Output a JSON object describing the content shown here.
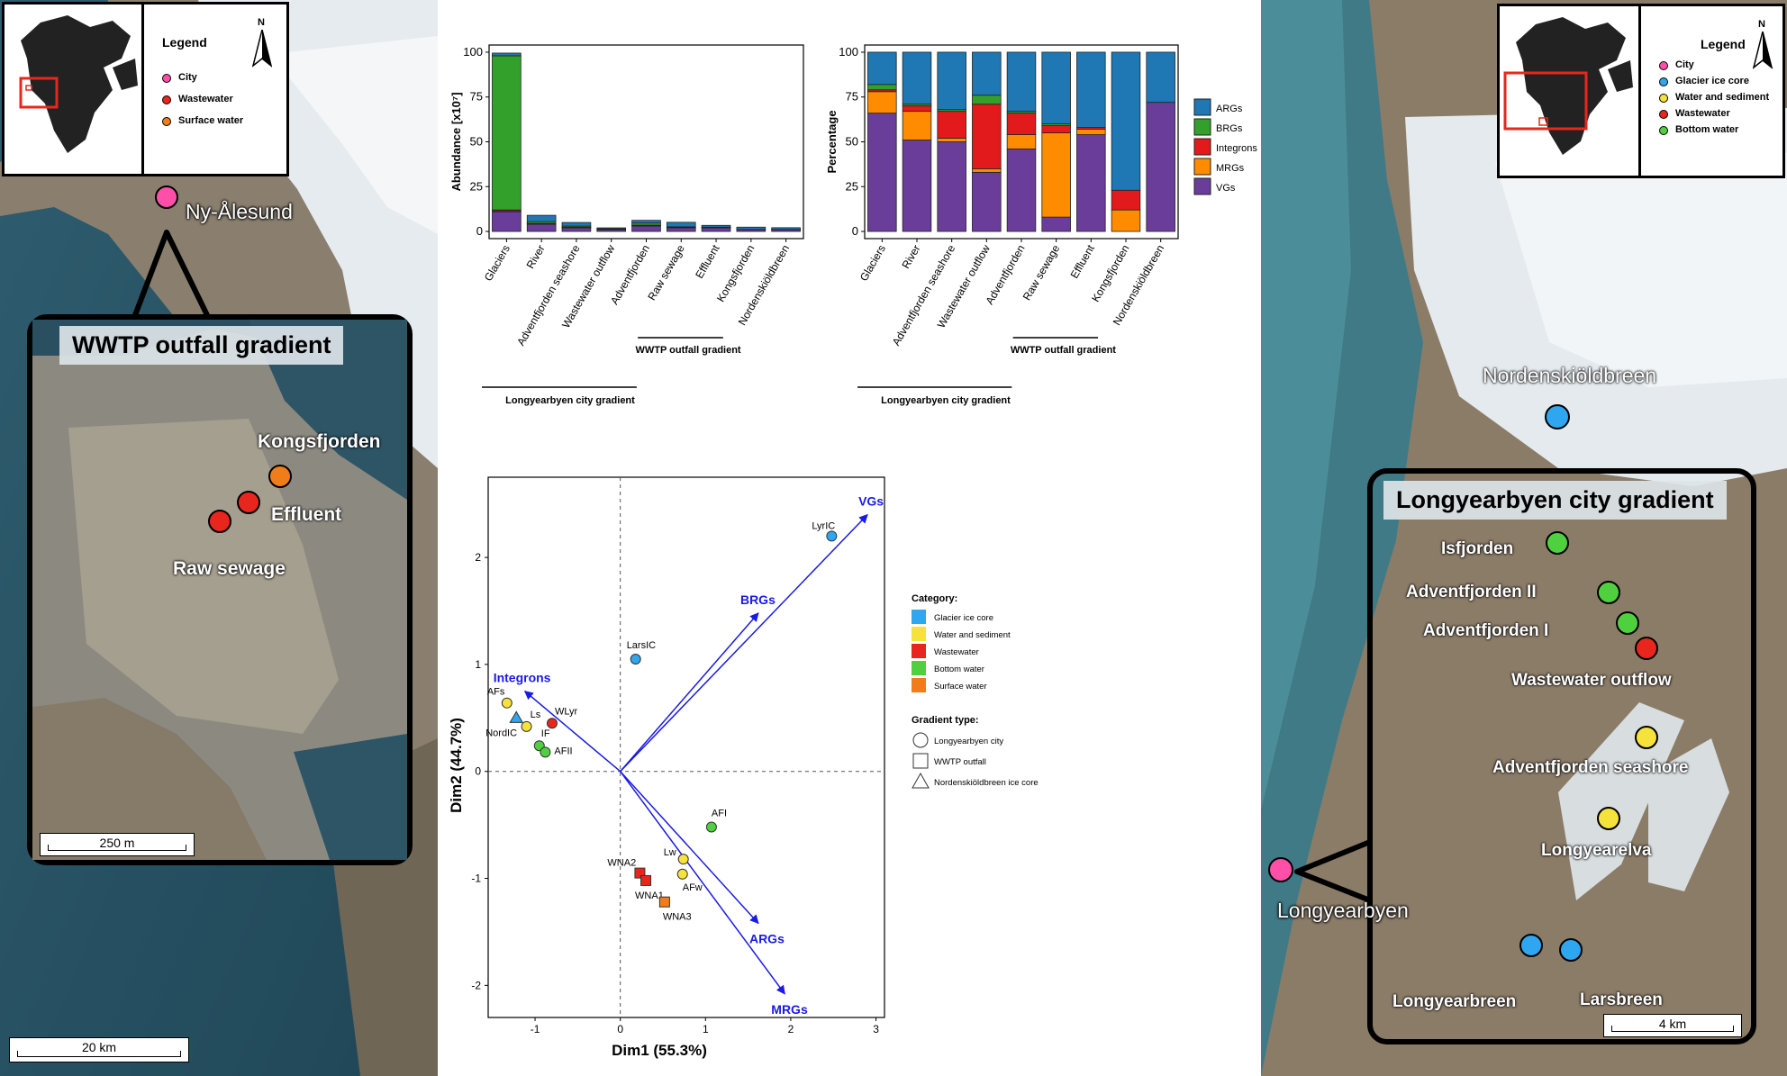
{
  "left_map": {
    "legend": {
      "title": "Legend",
      "north": "N",
      "items": [
        {
          "label": "City",
          "color": "#ff4fa8"
        },
        {
          "label": "Wastewater",
          "color": "#e8261e"
        },
        {
          "label": "Surface water",
          "color": "#f07d1a"
        }
      ]
    },
    "city": "Ny-Ålesund",
    "callout_title": "WWTP outfall gradient",
    "sites": [
      {
        "label": "Kongsfjorden",
        "color": "#f07d1a"
      },
      {
        "label": "Effluent",
        "color": "#e8261e"
      },
      {
        "label": "Raw sewage",
        "color": "#e8261e"
      }
    ],
    "scale_inner": "250 m",
    "scale_outer": "20 km"
  },
  "right_map": {
    "legend": {
      "title": "Legend",
      "north": "N",
      "items": [
        {
          "label": "City",
          "color": "#ff4fa8"
        },
        {
          "label": "Glacier ice core",
          "color": "#2ea6f0"
        },
        {
          "label": "Water and sediment",
          "color": "#f5e23a"
        },
        {
          "label": "Wastewater",
          "color": "#e8261e"
        },
        {
          "label": "Bottom water",
          "color": "#4fd13f"
        }
      ]
    },
    "glacier": "Nordenskiöldbreen",
    "callout_title": "Longyearbyen city gradient",
    "city": "Longyearbyen",
    "sites": [
      {
        "label": "Isfjorden",
        "color": "#4fd13f"
      },
      {
        "label": "Adventfjorden II",
        "color": "#4fd13f"
      },
      {
        "label": "Adventfjorden I",
        "color": "#4fd13f"
      },
      {
        "label": "Wastewater outflow",
        "color": "#e8261e"
      },
      {
        "label": "Adventfjorden seashore",
        "color": "#f5e23a"
      },
      {
        "label": "Longyearelva",
        "color": "#f5e23a"
      },
      {
        "label": "Longyearbreen",
        "color": "#2ea6f0"
      },
      {
        "label": "Larsbreen",
        "color": "#2ea6f0"
      }
    ],
    "scale": "4 km"
  },
  "chart_data": [
    {
      "type": "bar",
      "stacked": true,
      "ylabel": "Abundance [x10⁷]",
      "ylim": [
        0,
        100
      ],
      "yticks": [
        0,
        25,
        50,
        75,
        100
      ],
      "categories": [
        "Glaciers",
        "River",
        "Adventfjorden seashore",
        "Wastewater outflow",
        "Adventfjorden",
        "Raw sewage",
        "Effluent",
        "Kongsfjorden",
        "Nordenskiöldbreen"
      ],
      "series": [
        {
          "name": "VGs",
          "color": "#6a3d9a",
          "values": [
            11,
            4,
            2,
            1,
            3,
            2,
            2,
            1,
            1
          ]
        },
        {
          "name": "MRGs",
          "color": "#ff8c00",
          "values": [
            0.5,
            0.3,
            0.2,
            0.1,
            0.3,
            0.3,
            0.1,
            0.1,
            0.1
          ]
        },
        {
          "name": "Integrons",
          "color": "#e31a1c",
          "values": [
            0.5,
            0.2,
            0.2,
            0.2,
            0.2,
            0.1,
            0.1,
            0,
            0
          ]
        },
        {
          "name": "BRGs",
          "color": "#33a02c",
          "values": [
            86,
            1,
            0.6,
            0.2,
            1.2,
            0.2,
            0.2,
            0,
            0
          ]
        },
        {
          "name": "ARGs",
          "color": "#1f78b4",
          "values": [
            1.5,
            3.5,
            2,
            0.5,
            1.5,
            2.5,
            1,
            1.3,
            1
          ]
        }
      ],
      "gradients": [
        "Longyearbyen city gradient",
        "WWTP outfall gradient"
      ]
    },
    {
      "type": "bar",
      "stacked": true,
      "ylabel": "Percentage",
      "ylim": [
        0,
        100
      ],
      "yticks": [
        0,
        25,
        50,
        75,
        100
      ],
      "categories": [
        "Glaciers",
        "River",
        "Adventfjorden seashore",
        "Wastewater outflow",
        "Adventfjorden",
        "Raw sewage",
        "Effluent",
        "Kongsfjorden",
        "Nordenskiöldbreen"
      ],
      "series": [
        {
          "name": "VGs",
          "color": "#6a3d9a",
          "values": [
            66,
            51,
            50,
            33,
            46,
            8,
            54,
            0,
            72
          ]
        },
        {
          "name": "MRGs",
          "color": "#ff8c00",
          "values": [
            12,
            16,
            2,
            2,
            8,
            47,
            3,
            12,
            0
          ]
        },
        {
          "name": "Integrons",
          "color": "#e31a1c",
          "values": [
            1,
            3,
            15,
            36,
            12,
            4,
            1,
            11,
            0
          ]
        },
        {
          "name": "BRGs",
          "color": "#33a02c",
          "values": [
            3,
            1,
            1,
            5,
            1,
            1,
            0,
            0,
            0
          ]
        },
        {
          "name": "ARGs",
          "color": "#1f78b4",
          "values": [
            18,
            29,
            32,
            24,
            33,
            40,
            42,
            77,
            28
          ]
        }
      ],
      "legend": [
        "ARGs",
        "BRGs",
        "Integrons",
        "MRGs",
        "VGs"
      ],
      "gradients": [
        "Longyearbyen city gradient",
        "WWTP outfall gradient"
      ]
    },
    {
      "type": "scatter",
      "subtype": "biplot",
      "xlabel": "Dim1 (55.3%)",
      "ylabel": "Dim2 (44.7%)",
      "xlim": [
        -1.55,
        3.1
      ],
      "ylim": [
        -2.3,
        2.75
      ],
      "xticks": [
        -1,
        0,
        1,
        2,
        3
      ],
      "yticks": [
        -2,
        -1,
        0,
        1,
        2
      ],
      "points": [
        {
          "label": "LyrIC",
          "x": 2.48,
          "y": 2.2,
          "category": "Glacier ice core",
          "shape": "circle"
        },
        {
          "label": "LarsIC",
          "x": 0.18,
          "y": 1.05,
          "category": "Glacier ice core",
          "shape": "circle"
        },
        {
          "label": "NordIC",
          "x": -1.22,
          "y": 0.5,
          "category": "Glacier ice core",
          "shape": "triangle"
        },
        {
          "label": "AFs",
          "x": -1.33,
          "y": 0.64,
          "category": "Water and sediment",
          "shape": "circle"
        },
        {
          "label": "Ls",
          "x": -1.1,
          "y": 0.42,
          "category": "Water and sediment",
          "shape": "circle"
        },
        {
          "label": "Lw",
          "x": 0.74,
          "y": -0.82,
          "category": "Water and sediment",
          "shape": "circle"
        },
        {
          "label": "AFw",
          "x": 0.73,
          "y": -0.96,
          "category": "Water and sediment",
          "shape": "circle"
        },
        {
          "label": "WLyr",
          "x": -0.8,
          "y": 0.45,
          "category": "Wastewater",
          "shape": "circle"
        },
        {
          "label": "WNA2",
          "x": 0.23,
          "y": -0.95,
          "category": "Wastewater",
          "shape": "square"
        },
        {
          "label": "WNA1",
          "x": 0.3,
          "y": -1.02,
          "category": "Wastewater",
          "shape": "square"
        },
        {
          "label": "IF",
          "x": -0.95,
          "y": 0.24,
          "category": "Bottom water",
          "shape": "circle"
        },
        {
          "label": "AFII",
          "x": -0.88,
          "y": 0.18,
          "category": "Bottom water",
          "shape": "circle"
        },
        {
          "label": "AFI",
          "x": 1.07,
          "y": -0.52,
          "category": "Bottom water",
          "shape": "circle"
        },
        {
          "label": "WNA3",
          "x": 0.52,
          "y": -1.22,
          "category": "Surface water",
          "shape": "square"
        }
      ],
      "vectors": [
        {
          "label": "VGs",
          "x": 2.9,
          "y": 2.4
        },
        {
          "label": "BRGs",
          "x": 1.62,
          "y": 1.48
        },
        {
          "label": "Integrons",
          "x": -1.12,
          "y": 0.75
        },
        {
          "label": "ARGs",
          "x": 1.62,
          "y": -1.42
        },
        {
          "label": "MRGs",
          "x": 1.93,
          "y": -2.08
        }
      ],
      "category_legend_title": "Category:",
      "categories": [
        {
          "name": "Glacier ice core",
          "color": "#2ea6f0"
        },
        {
          "name": "Water and sediment",
          "color": "#f5e23a"
        },
        {
          "name": "Wastewater",
          "color": "#e8261e"
        },
        {
          "name": "Bottom water",
          "color": "#4fd13f"
        },
        {
          "name": "Surface water",
          "color": "#f07d1a"
        }
      ],
      "gradient_legend_title": "Gradient type:",
      "gradient_types": [
        {
          "name": "Longyearbyen city",
          "shape": "circle"
        },
        {
          "name": "WWTP outfall",
          "shape": "square"
        },
        {
          "name": "Nordenskiöldbreen ice core",
          "shape": "triangle"
        }
      ]
    }
  ]
}
